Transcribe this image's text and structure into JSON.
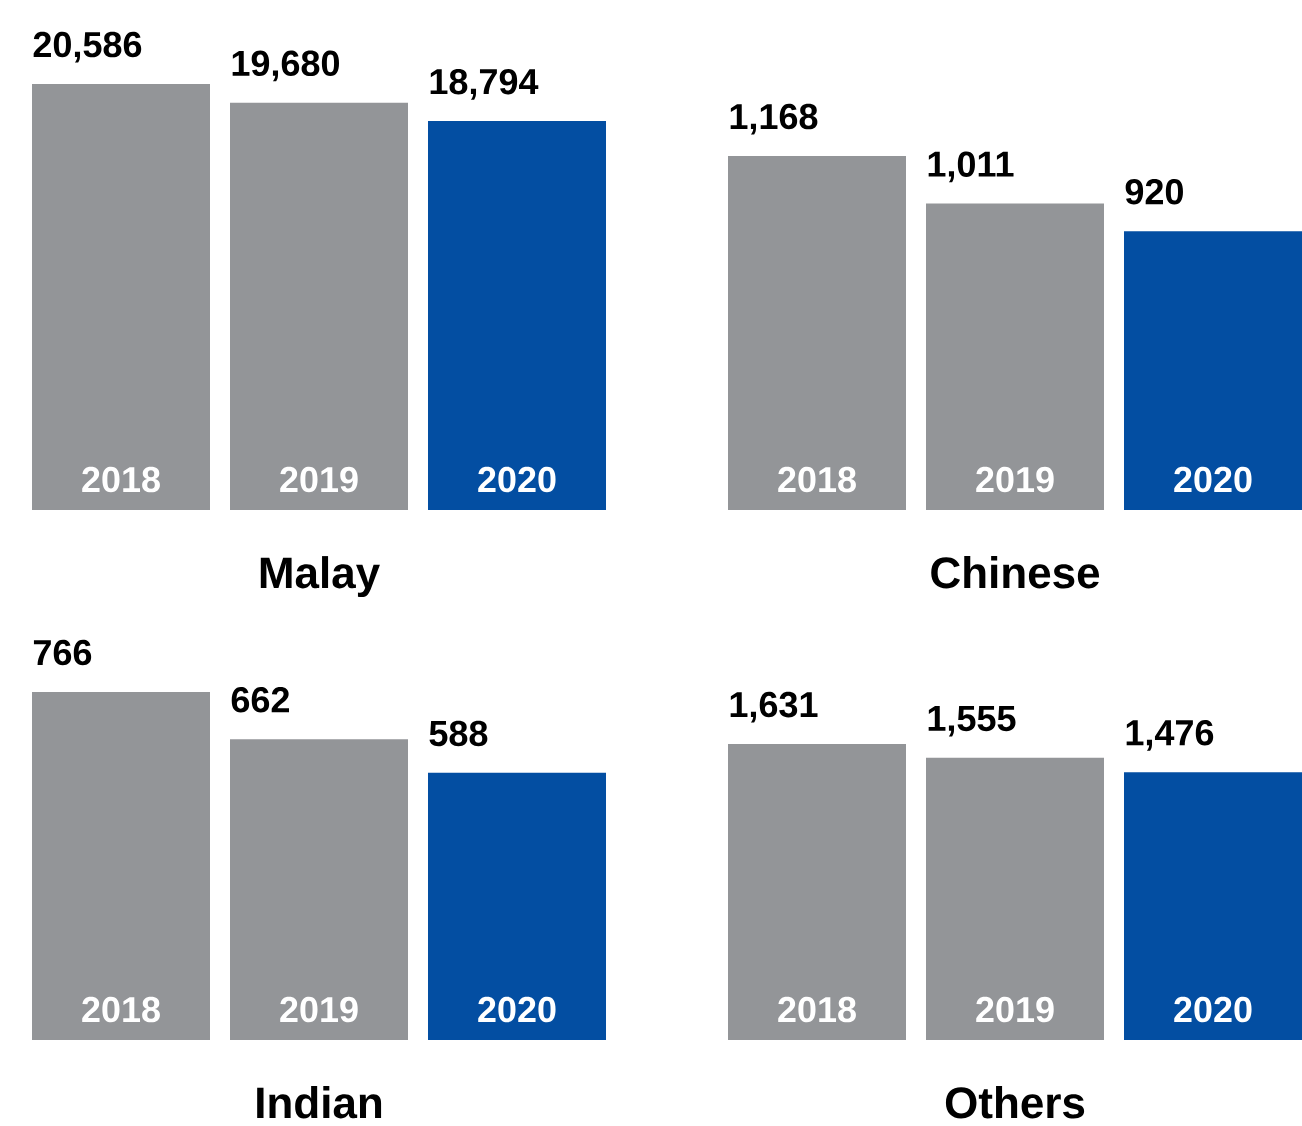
{
  "chart_data": [
    {
      "type": "bar",
      "categories": [
        "2018",
        "2019",
        "2020"
      ],
      "values": [
        20586,
        19680,
        18794
      ],
      "colors": [
        "#939598",
        "#939598",
        "#034ea2"
      ],
      "value_labels": [
        "20,586",
        "19,680",
        "18,794"
      ],
      "xlabel": "Malay"
    },
    {
      "type": "bar",
      "categories": [
        "2018",
        "2019",
        "2020"
      ],
      "values": [
        1168,
        1011,
        920
      ],
      "colors": [
        "#939598",
        "#939598",
        "#034ea2"
      ],
      "value_labels": [
        "1,168",
        "1,011",
        "920"
      ],
      "xlabel": "Chinese"
    },
    {
      "type": "bar",
      "categories": [
        "2018",
        "2019",
        "2020"
      ],
      "values": [
        766,
        662,
        588
      ],
      "colors": [
        "#939598",
        "#939598",
        "#034ea2"
      ],
      "value_labels": [
        "766",
        "662",
        "588"
      ],
      "xlabel": "Indian"
    },
    {
      "type": "bar",
      "categories": [
        "2018",
        "2019",
        "2020"
      ],
      "values": [
        1631,
        1555,
        1476
      ],
      "colors": [
        "#939598",
        "#939598",
        "#034ea2"
      ],
      "value_labels": [
        "1,631",
        "1,555",
        "1,476"
      ],
      "xlabel": "Others"
    }
  ]
}
